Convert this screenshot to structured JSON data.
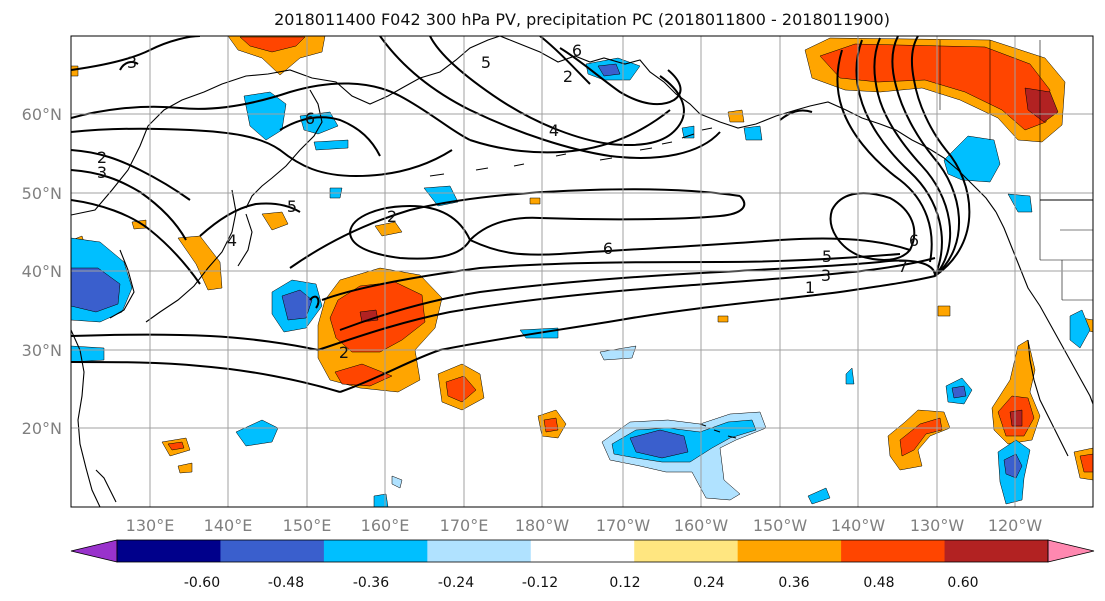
{
  "title": "2018011400 F042 300 hPa PV, precipitation PC (2018011800 - 2018011900)",
  "map": {
    "lon_ticks": [
      "130°E",
      "140°E",
      "150°E",
      "160°E",
      "170°E",
      "180°W",
      "170°W",
      "160°W",
      "150°W",
      "140°W",
      "130°W",
      "120°W"
    ],
    "lat_ticks": [
      "60°N",
      "50°N",
      "40°N",
      "30°N",
      "20°N"
    ],
    "contour_labels": [
      "2",
      "3",
      "2",
      "3",
      "5",
      "4",
      "6",
      "2",
      "5",
      "4",
      "6",
      "6",
      "7",
      "5",
      "3",
      "1",
      "2",
      "6"
    ]
  },
  "colorbar": {
    "ticks": [
      "-0.60",
      "-0.48",
      "-0.36",
      "-0.24",
      "-0.12",
      "0.12",
      "0.24",
      "0.36",
      "0.48",
      "0.60"
    ],
    "colors": [
      "#9932cc",
      "#00008b",
      "#3a5fcd",
      "#00bfff",
      "#b0e2ff",
      "#ffffff",
      "#ffe680",
      "#ffa500",
      "#ff4500",
      "#b22222",
      "#ff88b0"
    ]
  },
  "colors": {
    "contour": "#000000",
    "coast": "#000000",
    "grid": "#a0a0a0"
  }
}
